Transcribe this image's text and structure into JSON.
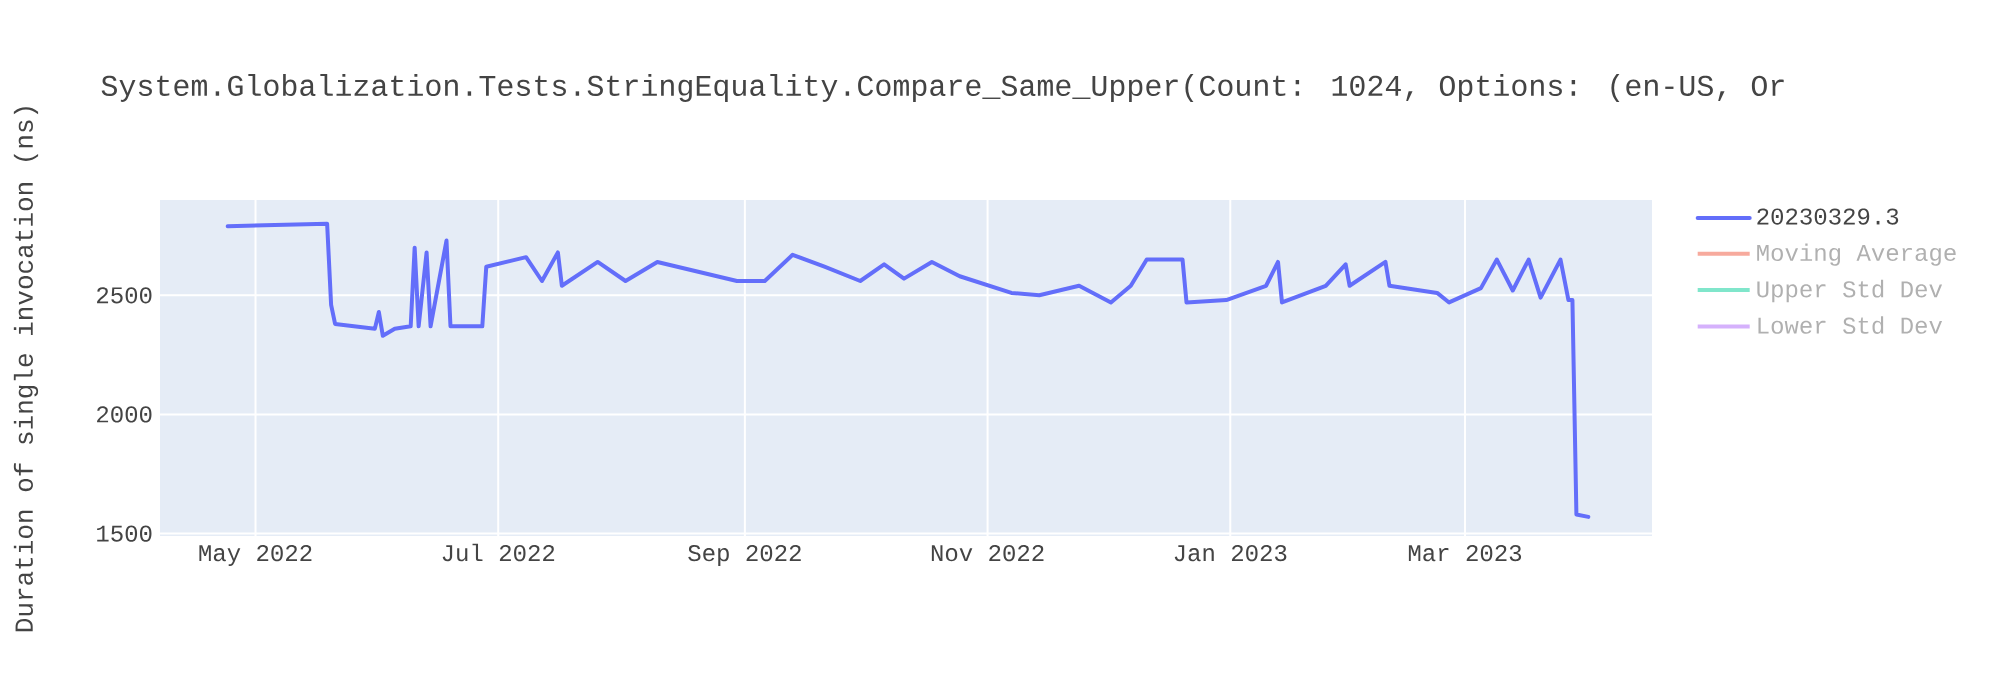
{
  "chart_data": {
    "type": "line",
    "title": "System.Globalization.Tests.StringEquality.Compare_Same_Upper(Count: 1024, Options: (en-US, Or",
    "ylabel": "Duration of single invocation (ns)",
    "xlim": [
      "2022-04-07",
      "2023-04-17"
    ],
    "xticks": [
      {
        "value": "2022-05-01",
        "label": "May 2022"
      },
      {
        "value": "2022-07-01",
        "label": "Jul 2022"
      },
      {
        "value": "2022-09-01",
        "label": "Sep 2022"
      },
      {
        "value": "2022-11-01",
        "label": "Nov 2022"
      },
      {
        "value": "2023-01-01",
        "label": "Jan 2023"
      },
      {
        "value": "2023-03-01",
        "label": "Mar 2023"
      }
    ],
    "ylim": [
      1490,
      2900
    ],
    "yticks": [
      1500,
      2000,
      2500
    ],
    "grid": true,
    "legend": "top right",
    "line_style": "solid",
    "series": [
      {
        "name": "20230329.3",
        "color": "#636efa",
        "x": [
          "2022-04-24",
          "2022-05-19",
          "2022-05-20",
          "2022-05-21",
          "2022-05-31",
          "2022-06-01",
          "2022-06-02",
          "2022-06-05",
          "2022-06-09",
          "2022-06-10",
          "2022-06-11",
          "2022-06-13",
          "2022-06-14",
          "2022-06-18",
          "2022-06-19",
          "2022-06-27",
          "2022-06-28",
          "2022-07-08",
          "2022-07-12",
          "2022-07-16",
          "2022-07-17",
          "2022-07-26",
          "2022-08-02",
          "2022-08-10",
          "2022-08-30",
          "2022-09-06",
          "2022-09-13",
          "2022-09-21",
          "2022-09-30",
          "2022-10-06",
          "2022-10-11",
          "2022-10-18",
          "2022-10-25",
          "2022-11-07",
          "2022-11-14",
          "2022-11-24",
          "2022-12-02",
          "2022-12-07",
          "2022-12-11",
          "2022-12-20",
          "2022-12-21",
          "2022-12-31",
          "2023-01-10",
          "2023-01-13",
          "2023-01-14",
          "2023-01-25",
          "2023-01-30",
          "2023-01-31",
          "2023-02-09",
          "2023-02-10",
          "2023-02-22",
          "2023-02-25",
          "2023-03-05",
          "2023-03-09",
          "2023-03-13",
          "2023-03-17",
          "2023-03-20",
          "2023-03-25",
          "2023-03-27",
          "2023-03-28",
          "2023-03-29",
          "2023-04-01"
        ],
        "values": [
          2790,
          2800,
          2460,
          2380,
          2360,
          2430,
          2330,
          2360,
          2370,
          2700,
          2370,
          2680,
          2370,
          2730,
          2370,
          2370,
          2620,
          2660,
          2560,
          2680,
          2540,
          2640,
          2560,
          2640,
          2560,
          2560,
          2670,
          2620,
          2560,
          2630,
          2570,
          2640,
          2580,
          2510,
          2500,
          2540,
          2470,
          2540,
          2650,
          2650,
          2470,
          2480,
          2540,
          2640,
          2470,
          2540,
          2630,
          2540,
          2640,
          2540,
          2510,
          2470,
          2530,
          2650,
          2520,
          2650,
          2490,
          2650,
          2480,
          2480,
          1580,
          1570
        ]
      },
      {
        "name": "Moving Average",
        "color": "#f7aa9d"
      },
      {
        "name": "Upper Std Dev",
        "color": "#80e6cb"
      },
      {
        "name": "Lower Std Dev",
        "color": "#d5b1fc"
      }
    ]
  }
}
